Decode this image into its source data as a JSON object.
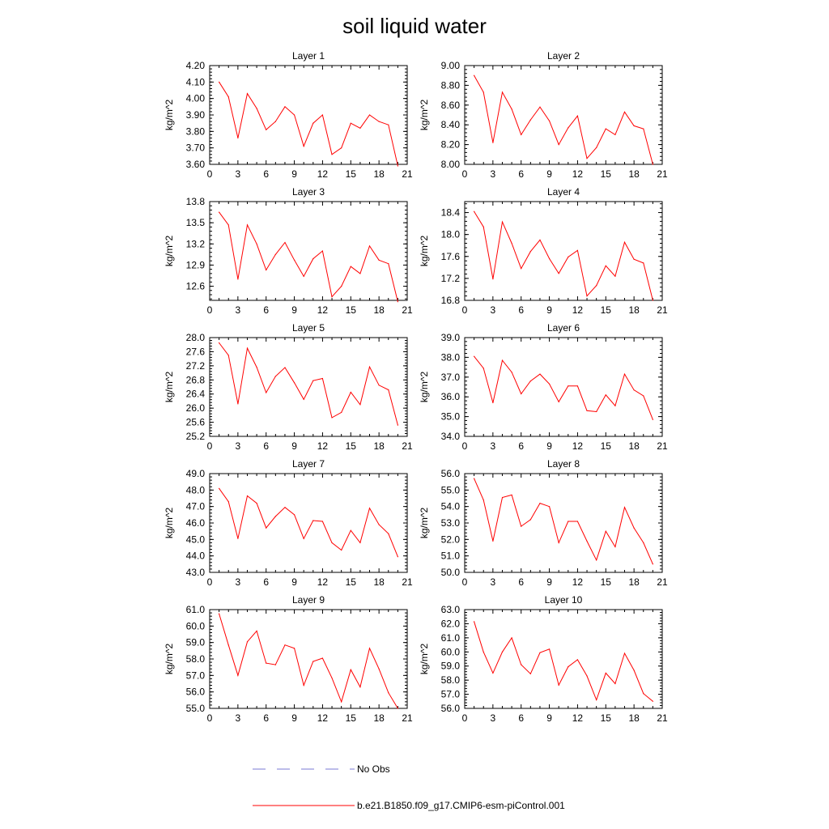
{
  "figure": {
    "title": "soil liquid water",
    "legend": {
      "obs_label": "No Obs",
      "obs_color": "#7a7ad6",
      "model_label": "b.e21.B1850.f09_g17.CMIP6-esm-piControl.001",
      "model_color": "#ff0000"
    }
  },
  "chart_data": [
    {
      "type": "line",
      "title": "Layer 1",
      "ylabel": "kg/m^2",
      "xlim": [
        0,
        21
      ],
      "xticks": [
        0,
        3,
        6,
        9,
        12,
        15,
        18,
        21
      ],
      "ylim": [
        3.6,
        4.2
      ],
      "yticks": [
        "3.60",
        "3.70",
        "3.80",
        "3.90",
        "4.00",
        "4.10",
        "4.20"
      ],
      "x": [
        1,
        2,
        3,
        4,
        5,
        6,
        7,
        8,
        9,
        10,
        11,
        12,
        13,
        14,
        15,
        16,
        17,
        18,
        19,
        20
      ],
      "series": [
        {
          "name": "b.e21.B1850.f09_g17.CMIP6-esm-piControl.001",
          "values": [
            4.1,
            4.01,
            3.76,
            4.03,
            3.94,
            3.81,
            3.86,
            3.95,
            3.9,
            3.71,
            3.85,
            3.9,
            3.66,
            3.7,
            3.85,
            3.82,
            3.9,
            3.86,
            3.84,
            3.59
          ]
        }
      ]
    },
    {
      "type": "line",
      "title": "Layer 2",
      "ylabel": "kg/m^2",
      "xlim": [
        0,
        21
      ],
      "xticks": [
        0,
        3,
        6,
        9,
        12,
        15,
        18,
        21
      ],
      "ylim": [
        8.0,
        9.0
      ],
      "yticks": [
        "8.00",
        "8.20",
        "8.40",
        "8.60",
        "8.80",
        "9.00"
      ],
      "x": [
        1,
        2,
        3,
        4,
        5,
        6,
        7,
        8,
        9,
        10,
        11,
        12,
        13,
        14,
        15,
        16,
        17,
        18,
        19,
        20
      ],
      "series": [
        {
          "name": "b.e21.B1850.f09_g17.CMIP6-esm-piControl.001",
          "values": [
            8.9,
            8.73,
            8.22,
            8.73,
            8.56,
            8.3,
            8.45,
            8.58,
            8.44,
            8.2,
            8.37,
            8.49,
            8.06,
            8.17,
            8.36,
            8.3,
            8.53,
            8.39,
            8.36,
            8.0
          ]
        }
      ]
    },
    {
      "type": "line",
      "title": "Layer 3",
      "ylabel": "kg/m^2",
      "xlim": [
        0,
        21
      ],
      "xticks": [
        0,
        3,
        6,
        9,
        12,
        15,
        18,
        21
      ],
      "ylim": [
        12.4,
        13.8
      ],
      "yticks": [
        "12.6",
        "12.9",
        "13.2",
        "13.5",
        "13.8"
      ],
      "x": [
        1,
        2,
        3,
        4,
        5,
        6,
        7,
        8,
        9,
        10,
        11,
        12,
        13,
        14,
        15,
        16,
        17,
        18,
        19,
        20
      ],
      "series": [
        {
          "name": "b.e21.B1850.f09_g17.CMIP6-esm-piControl.001",
          "values": [
            13.65,
            13.47,
            12.7,
            13.47,
            13.2,
            12.83,
            13.05,
            13.22,
            12.97,
            12.74,
            12.99,
            13.1,
            12.45,
            12.6,
            12.88,
            12.78,
            13.17,
            12.97,
            12.92,
            12.38
          ]
        }
      ]
    },
    {
      "type": "line",
      "title": "Layer 4",
      "ylabel": "kg/m^2",
      "xlim": [
        0,
        21
      ],
      "xticks": [
        0,
        3,
        6,
        9,
        12,
        15,
        18,
        21
      ],
      "ylim": [
        16.8,
        18.6
      ],
      "yticks": [
        "16.8",
        "17.2",
        "17.6",
        "18.0",
        "18.4"
      ],
      "x": [
        1,
        2,
        3,
        4,
        5,
        6,
        7,
        8,
        9,
        10,
        11,
        12,
        13,
        14,
        15,
        16,
        17,
        18,
        19,
        20
      ],
      "series": [
        {
          "name": "b.e21.B1850.f09_g17.CMIP6-esm-piControl.001",
          "values": [
            18.42,
            18.14,
            17.19,
            18.23,
            17.84,
            17.38,
            17.69,
            17.9,
            17.56,
            17.29,
            17.59,
            17.71,
            16.88,
            17.07,
            17.43,
            17.24,
            17.86,
            17.55,
            17.48,
            16.8
          ]
        }
      ]
    },
    {
      "type": "line",
      "title": "Layer 5",
      "ylabel": "kg/m^2",
      "xlim": [
        0,
        21
      ],
      "xticks": [
        0,
        3,
        6,
        9,
        12,
        15,
        18,
        21
      ],
      "ylim": [
        25.2,
        28.0
      ],
      "yticks": [
        "25.2",
        "25.6",
        "26.0",
        "26.4",
        "26.8",
        "27.2",
        "27.6",
        "28.0"
      ],
      "x": [
        1,
        2,
        3,
        4,
        5,
        6,
        7,
        8,
        9,
        10,
        11,
        12,
        13,
        14,
        15,
        16,
        17,
        18,
        19,
        20
      ],
      "series": [
        {
          "name": "b.e21.B1850.f09_g17.CMIP6-esm-piControl.001",
          "values": [
            27.85,
            27.5,
            26.12,
            27.7,
            27.16,
            26.44,
            26.9,
            27.15,
            26.72,
            26.25,
            26.78,
            26.84,
            25.73,
            25.88,
            26.45,
            26.1,
            27.17,
            26.65,
            26.52,
            25.52
          ]
        }
      ]
    },
    {
      "type": "line",
      "title": "Layer 6",
      "ylabel": "kg/m^2",
      "xlim": [
        0,
        21
      ],
      "xticks": [
        0,
        3,
        6,
        9,
        12,
        15,
        18,
        21
      ],
      "ylim": [
        34.0,
        39.0
      ],
      "yticks": [
        "34.0",
        "35.0",
        "36.0",
        "37.0",
        "38.0",
        "39.0"
      ],
      "x": [
        1,
        2,
        3,
        4,
        5,
        6,
        7,
        8,
        9,
        10,
        11,
        12,
        13,
        14,
        15,
        16,
        17,
        18,
        19,
        20
      ],
      "series": [
        {
          "name": "b.e21.B1850.f09_g17.CMIP6-esm-piControl.001",
          "values": [
            38.05,
            37.45,
            35.7,
            37.85,
            37.25,
            36.15,
            36.8,
            37.15,
            36.65,
            35.75,
            36.55,
            36.55,
            35.3,
            35.25,
            36.1,
            35.55,
            37.15,
            36.35,
            36.05,
            34.85
          ]
        }
      ]
    },
    {
      "type": "line",
      "title": "Layer 7",
      "ylabel": "kg/m^2",
      "xlim": [
        0,
        21
      ],
      "xticks": [
        0,
        3,
        6,
        9,
        12,
        15,
        18,
        21
      ],
      "ylim": [
        43.0,
        49.0
      ],
      "yticks": [
        "43.0",
        "44.0",
        "45.0",
        "46.0",
        "47.0",
        "48.0",
        "49.0"
      ],
      "x": [
        1,
        2,
        3,
        4,
        5,
        6,
        7,
        8,
        9,
        10,
        11,
        12,
        13,
        14,
        15,
        16,
        17,
        18,
        19,
        20
      ],
      "series": [
        {
          "name": "b.e21.B1850.f09_g17.CMIP6-esm-piControl.001",
          "values": [
            48.1,
            47.3,
            45.05,
            47.65,
            47.2,
            45.7,
            46.4,
            46.95,
            46.5,
            45.05,
            46.15,
            46.1,
            44.8,
            44.35,
            45.55,
            44.8,
            46.9,
            45.9,
            45.35,
            43.95
          ]
        }
      ]
    },
    {
      "type": "line",
      "title": "Layer 8",
      "ylabel": "kg/m^2",
      "xlim": [
        0,
        21
      ],
      "xticks": [
        0,
        3,
        6,
        9,
        12,
        15,
        18,
        21
      ],
      "ylim": [
        50.0,
        56.0
      ],
      "yticks": [
        "50.0",
        "51.0",
        "52.0",
        "53.0",
        "54.0",
        "55.0",
        "56.0"
      ],
      "x": [
        1,
        2,
        3,
        4,
        5,
        6,
        7,
        8,
        9,
        10,
        11,
        12,
        13,
        14,
        15,
        16,
        17,
        18,
        19,
        20
      ],
      "series": [
        {
          "name": "b.e21.B1850.f09_g17.CMIP6-esm-piControl.001",
          "values": [
            55.7,
            54.4,
            51.9,
            54.55,
            54.7,
            52.8,
            53.2,
            54.2,
            54.0,
            51.8,
            53.1,
            53.1,
            51.9,
            50.75,
            52.5,
            51.55,
            53.95,
            52.7,
            51.8,
            50.5
          ]
        }
      ]
    },
    {
      "type": "line",
      "title": "Layer 9",
      "ylabel": "kg/m^2",
      "xlim": [
        0,
        21
      ],
      "xticks": [
        0,
        3,
        6,
        9,
        12,
        15,
        18,
        21
      ],
      "ylim": [
        55.0,
        61.0
      ],
      "yticks": [
        "55.0",
        "56.0",
        "57.0",
        "58.0",
        "59.0",
        "60.0",
        "61.0"
      ],
      "x": [
        1,
        2,
        3,
        4,
        5,
        6,
        7,
        8,
        9,
        10,
        11,
        12,
        13,
        14,
        15,
        16,
        17,
        18,
        19,
        20
      ],
      "series": [
        {
          "name": "b.e21.B1850.f09_g17.CMIP6-esm-piControl.001",
          "values": [
            60.75,
            58.85,
            57.0,
            59.05,
            59.7,
            57.75,
            57.65,
            58.85,
            58.65,
            56.4,
            57.85,
            58.05,
            56.85,
            55.4,
            57.35,
            56.3,
            58.65,
            57.4,
            55.95,
            55.0
          ]
        }
      ]
    },
    {
      "type": "line",
      "title": "Layer 10",
      "ylabel": "kg/m^2",
      "xlim": [
        0,
        21
      ],
      "xticks": [
        0,
        3,
        6,
        9,
        12,
        15,
        18,
        21
      ],
      "ylim": [
        56.0,
        63.0
      ],
      "yticks": [
        "56.0",
        "57.0",
        "58.0",
        "59.0",
        "60.0",
        "61.0",
        "62.0",
        "63.0"
      ],
      "x": [
        1,
        2,
        3,
        4,
        5,
        6,
        7,
        8,
        9,
        10,
        11,
        12,
        13,
        14,
        15,
        16,
        17,
        18,
        19,
        20
      ],
      "series": [
        {
          "name": "b.e21.B1850.f09_g17.CMIP6-esm-piControl.001",
          "values": [
            62.15,
            60.0,
            58.5,
            60.0,
            61.0,
            59.1,
            58.45,
            59.95,
            60.2,
            57.65,
            58.95,
            59.45,
            58.3,
            56.6,
            58.5,
            57.75,
            59.9,
            58.7,
            57.05,
            56.5
          ]
        }
      ]
    }
  ]
}
